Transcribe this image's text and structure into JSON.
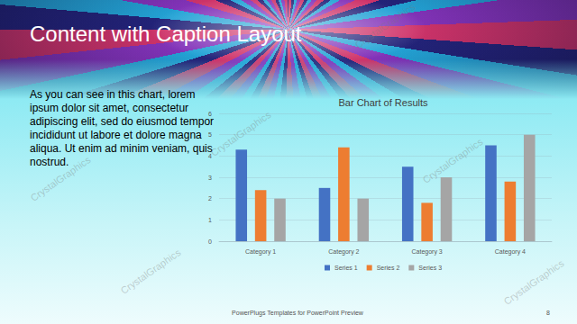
{
  "slide": {
    "title": "Content with Caption Layout",
    "caption": "As you can see in this chart, lorem ipsum dolor sit amet, consectetur adipiscing elit, sed do eiusmod tempor incididunt ut labore et dolore magna aliqua. Ut enim ad minim veniam, quis nostrud.",
    "footer": "PowerPlugs Templates for PowerPoint Preview",
    "page": "8",
    "watermark": "CrystalGraphics"
  },
  "chart_data": {
    "type": "bar",
    "title": "Bar Chart of Results",
    "categories": [
      "Category 1",
      "Category 2",
      "Category 3",
      "Category 4"
    ],
    "series": [
      {
        "name": "Series 1",
        "color": "#4472c4",
        "values": [
          4.3,
          2.5,
          3.5,
          4.5
        ]
      },
      {
        "name": "Series 2",
        "color": "#ed7d31",
        "values": [
          2.4,
          4.4,
          1.8,
          2.8
        ]
      },
      {
        "name": "Series 3",
        "color": "#a5a5a5",
        "values": [
          2,
          2,
          3,
          5
        ]
      }
    ],
    "ylim": [
      0,
      6
    ],
    "yticks": [
      0,
      1,
      2,
      3,
      4,
      5,
      6
    ],
    "grid": true,
    "legend": "bottom"
  }
}
